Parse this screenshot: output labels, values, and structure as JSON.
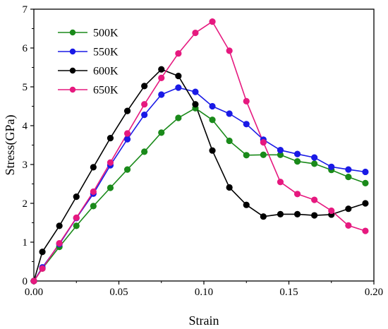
{
  "chart_data": {
    "type": "line",
    "title": "",
    "xlabel": "Strain",
    "ylabel": "Stress(GPa)",
    "xlim": [
      0,
      0.2
    ],
    "ylim": [
      0,
      7
    ],
    "xticks": [
      0.0,
      0.05,
      0.1,
      0.15,
      0.2
    ],
    "xtick_labels": [
      "0.00",
      "0.05",
      "0.10",
      "0.15",
      "0.20"
    ],
    "yticks": [
      0,
      1,
      2,
      3,
      4,
      5,
      6,
      7
    ],
    "ytick_labels": [
      "0",
      "1",
      "2",
      "3",
      "4",
      "5",
      "6",
      "7"
    ],
    "grid": false,
    "legend_position": "top-left",
    "x": [
      0,
      0.005,
      0.015,
      0.025,
      0.035,
      0.045,
      0.055,
      0.065,
      0.075,
      0.085,
      0.095,
      0.105,
      0.115,
      0.125,
      0.135,
      0.145,
      0.155,
      0.165,
      0.175,
      0.185,
      0.195
    ],
    "series": [
      {
        "name": "500K",
        "color": "#1a8a1a",
        "values": [
          0,
          0.32,
          0.88,
          1.42,
          1.93,
          2.4,
          2.87,
          3.33,
          3.82,
          4.2,
          4.45,
          4.15,
          3.61,
          3.24,
          3.25,
          3.25,
          3.08,
          3.02,
          2.86,
          2.68,
          2.52
        ]
      },
      {
        "name": "550K",
        "color": "#1a1ae6",
        "values": [
          0,
          0.35,
          0.95,
          1.62,
          2.25,
          2.98,
          3.65,
          4.28,
          4.8,
          4.98,
          4.87,
          4.5,
          4.31,
          4.04,
          3.64,
          3.37,
          3.27,
          3.18,
          2.94,
          2.87,
          2.81
        ]
      },
      {
        "name": "600K",
        "color": "#000000",
        "values": [
          0,
          0.75,
          1.42,
          2.17,
          2.93,
          3.68,
          4.38,
          5.02,
          5.45,
          5.28,
          4.55,
          3.36,
          2.41,
          1.96,
          1.66,
          1.72,
          1.72,
          1.69,
          1.71,
          1.86,
          2.0
        ]
      },
      {
        "name": "650K",
        "color": "#e6197f",
        "values": [
          0,
          0.32,
          0.97,
          1.63,
          2.3,
          3.05,
          3.8,
          4.55,
          5.23,
          5.86,
          6.39,
          6.68,
          5.93,
          4.63,
          3.57,
          2.55,
          2.24,
          2.09,
          1.81,
          1.43,
          1.29
        ]
      }
    ]
  }
}
